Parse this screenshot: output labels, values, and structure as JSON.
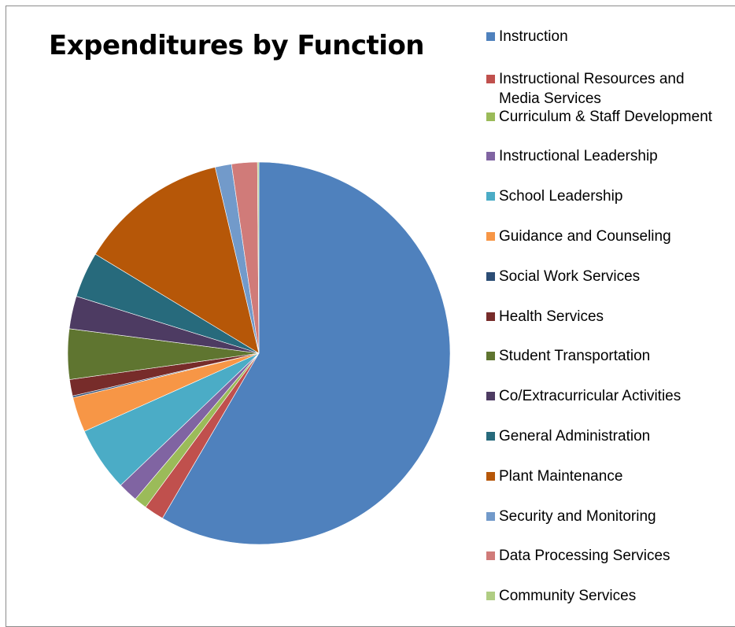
{
  "chart_data": {
    "type": "pie",
    "title": "Expenditures by Function",
    "legend_position": "right",
    "slices": [
      {
        "label": "Instruction",
        "value": 59.1,
        "color": "#4F81BD"
      },
      {
        "label": "Instructional Resources and\nMedia Services",
        "value": 1.7,
        "color": "#C0504D"
      },
      {
        "label": "Curriculum & Staff Development",
        "value": 1.1,
        "color": "#9BBB59"
      },
      {
        "label": "Instructional Leadership",
        "value": 1.7,
        "color": "#8064A2"
      },
      {
        "label": "School Leadership",
        "value": 5.5,
        "color": "#4BACC6"
      },
      {
        "label": "Guidance and Counseling",
        "value": 3.0,
        "color": "#F79646"
      },
      {
        "label": "Social Work Services",
        "value": 0.15,
        "color": "#2C4D75"
      },
      {
        "label": "Health Services",
        "value": 1.4,
        "color": "#772C2A"
      },
      {
        "label": "Student Transportation",
        "value": 4.3,
        "color": "#5F7530"
      },
      {
        "label": "Co/Extracurricular Activities",
        "value": 2.8,
        "color": "#4D3B62"
      },
      {
        "label": "General Administration",
        "value": 3.9,
        "color": "#276A7C"
      },
      {
        "label": "Plant Maintenance",
        "value": 12.8,
        "color": "#B65708"
      },
      {
        "label": "Security and Monitoring",
        "value": 1.4,
        "color": "#729ACA"
      },
      {
        "label": "Data Processing Services",
        "value": 2.2,
        "color": "#D07B79"
      },
      {
        "label": "Community Services",
        "value": 0.12,
        "color": "#B0CD83"
      }
    ]
  }
}
